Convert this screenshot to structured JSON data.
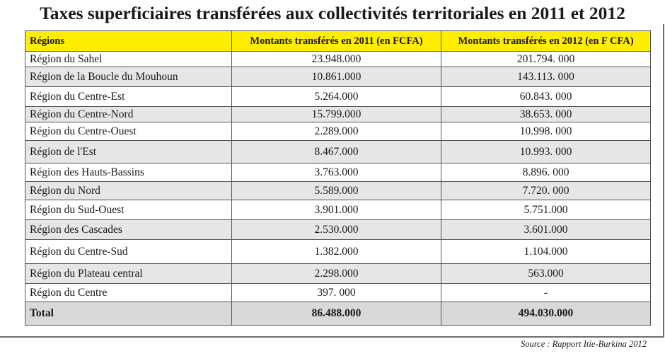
{
  "title": "Taxes superficiaires transférées aux collectivités territoriales en 2011 et 2012",
  "table": {
    "headers": [
      "Régions",
      "Montants transférés en 2011 (en FCFA)",
      "Montants transférés en 2012 (en F CFA)"
    ],
    "rows": [
      {
        "region": "Région du Sahel",
        "v2011": "23.948.000",
        "v2012": "201.794. 000"
      },
      {
        "region": "Région de la Boucle du Mouhoun",
        "v2011": "10.861.000",
        "v2012": "143.113. 000"
      },
      {
        "region": "Région du Centre-Est",
        "v2011": "5.264.000",
        "v2012": "60.843. 000"
      },
      {
        "region": "Région du Centre-Nord",
        "v2011": "15.799.000",
        "v2012": "38.653. 000"
      },
      {
        "region": "Région du Centre-Ouest",
        "v2011": "2.289.000",
        "v2012": "10.998. 000"
      },
      {
        "region": "Région de l'Est",
        "v2011": "8.467.000",
        "v2012": "10.993. 000"
      },
      {
        "region": "Région des Hauts-Bassins",
        "v2011": "3.763.000",
        "v2012": "8.896. 000"
      },
      {
        "region": "Région du Nord",
        "v2011": "5.589.000",
        "v2012": "7.720. 000"
      },
      {
        "region": "Région du Sud-Ouest",
        "v2011": "3.901.000",
        "v2012": "5.751.000"
      },
      {
        "region": "Région des Cascades",
        "v2011": "2.530.000",
        "v2012": "3.601.000"
      },
      {
        "region": "Région du Centre-Sud",
        "v2011": "1.382.000",
        "v2012": "1.104.000"
      },
      {
        "region": "Région du Plateau central",
        "v2011": "2.298.000",
        "v2012": "563.000"
      },
      {
        "region": "Région du Centre",
        "v2011": "397. 000",
        "v2012": "-"
      }
    ],
    "total": {
      "label": "Total",
      "v2011": "86.488.000",
      "v2012": "494.030.000"
    }
  },
  "source": "Source : Rapport Itie-Burkina 2012",
  "colors": {
    "header_bg": "#ffee00",
    "shaded_row_bg": "#e6e6e6",
    "total_row_bg": "#d9d9d9"
  }
}
